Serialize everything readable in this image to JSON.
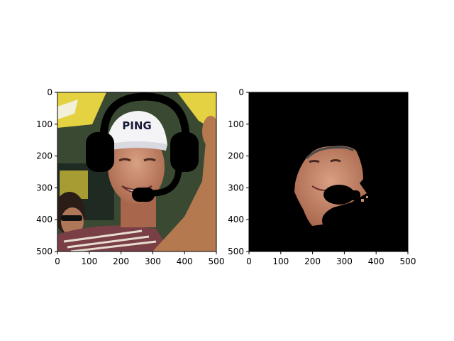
{
  "figure": {
    "background": "#ffffff"
  },
  "chart_data": [
    {
      "type": "image",
      "content": "photo of a smiling man wearing a white PING cap, with a black headset-with-microphone icon drawn over his head",
      "cap_text": "PING",
      "xlim": [
        0,
        500
      ],
      "ylim": [
        500,
        0
      ],
      "xticks": [
        0,
        100,
        200,
        300,
        400,
        500
      ],
      "yticks": [
        0,
        100,
        200,
        300,
        400,
        500
      ],
      "xtick_labels": [
        "0",
        "100",
        "200",
        "300",
        "400",
        "500"
      ],
      "ytick_labels": [
        "0",
        "100",
        "200",
        "300",
        "400",
        "500"
      ],
      "grid": false,
      "colors": {
        "skin": "#c98e70",
        "background_yellow": "#e4d242",
        "shirt": "#7a3e46",
        "headset": "#000000"
      }
    },
    {
      "type": "image",
      "content": "face segmentation mask on black background, face region visible with the microphone area blacked out",
      "xlim": [
        0,
        500
      ],
      "ylim": [
        500,
        0
      ],
      "xticks": [
        0,
        100,
        200,
        300,
        400,
        500
      ],
      "yticks": [
        0,
        100,
        200,
        300,
        400,
        500
      ],
      "xtick_labels": [
        "0",
        "100",
        "200",
        "300",
        "400",
        "500"
      ],
      "ytick_labels": [
        "0",
        "100",
        "200",
        "300",
        "400",
        "500"
      ],
      "grid": false,
      "colors": {
        "mask_background": "#000000",
        "skin": "#c98e70"
      }
    }
  ]
}
